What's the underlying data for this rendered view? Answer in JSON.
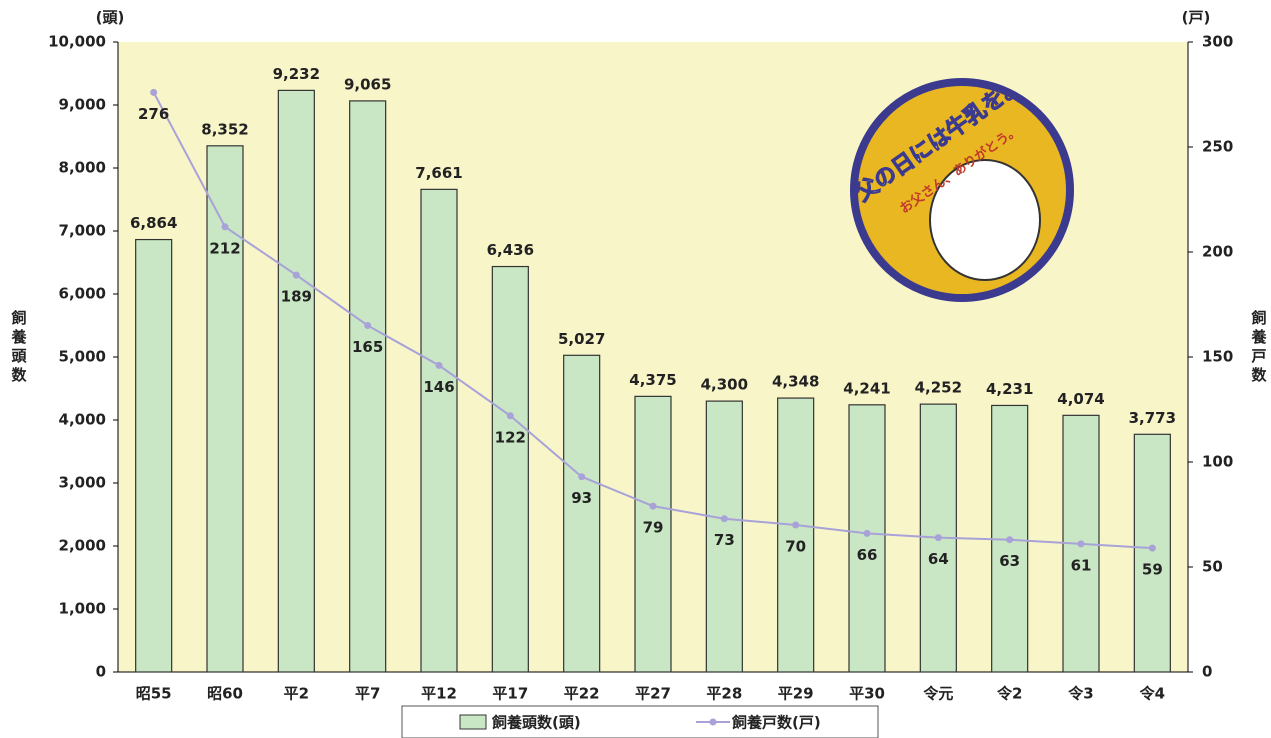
{
  "chart_data": {
    "type": "bar",
    "y_unit": "(頭)",
    "y2_unit": "(戸)",
    "ylabel": "飼養頭数",
    "y2label": "飼養戸数",
    "categories": [
      "昭55",
      "昭60",
      "平2",
      "平7",
      "平12",
      "平17",
      "平22",
      "平27",
      "平28",
      "平29",
      "平30",
      "令元",
      "令2",
      "令3",
      "令4"
    ],
    "series": [
      {
        "name": "飼養頭数(頭)",
        "type": "bar",
        "color": "#c9e7c4",
        "values": [
          6864,
          8352,
          9232,
          9065,
          7661,
          6436,
          5027,
          4375,
          4300,
          4348,
          4241,
          4252,
          4231,
          4074,
          3773
        ],
        "value_labels": [
          "6,864",
          "8,352",
          "9,232",
          "9,065",
          "7,661",
          "6,436",
          "5,027",
          "4,375",
          "4,300",
          "4,348",
          "4,241",
          "4,252",
          "4,231",
          "4,074",
          "3,773"
        ]
      },
      {
        "name": "飼養戸数(戸)",
        "type": "line",
        "axis": "y2",
        "color": "#a8a2d8",
        "values": [
          276,
          212,
          189,
          165,
          146,
          122,
          93,
          79,
          73,
          70,
          66,
          64,
          63,
          61,
          59
        ]
      }
    ],
    "ylim": [
      0,
      10000
    ],
    "yticks": [
      0,
      {
        "value": 1000,
        "label": "1,000"
      },
      {
        "value": 2000,
        "label": "2,000"
      },
      {
        "value": 3000,
        "label": "3,000"
      },
      {
        "value": 4000,
        "label": "4,000"
      },
      {
        "value": 5000,
        "label": "5,000"
      },
      {
        "value": 6000,
        "label": "6,000"
      },
      {
        "value": 7000,
        "label": "7,000"
      },
      {
        "value": 8000,
        "label": "8,000"
      },
      {
        "value": 9000,
        "label": "9,000"
      },
      {
        "value": 10000,
        "label": "10,000"
      }
    ],
    "y2lim": [
      0,
      300
    ],
    "y2ticks": [
      0,
      50,
      100,
      150,
      200,
      250,
      300
    ],
    "grid": false,
    "legend": "bottom",
    "annotations": [
      "父の日には牛乳を。",
      "お父さん、ありがとう。"
    ]
  }
}
